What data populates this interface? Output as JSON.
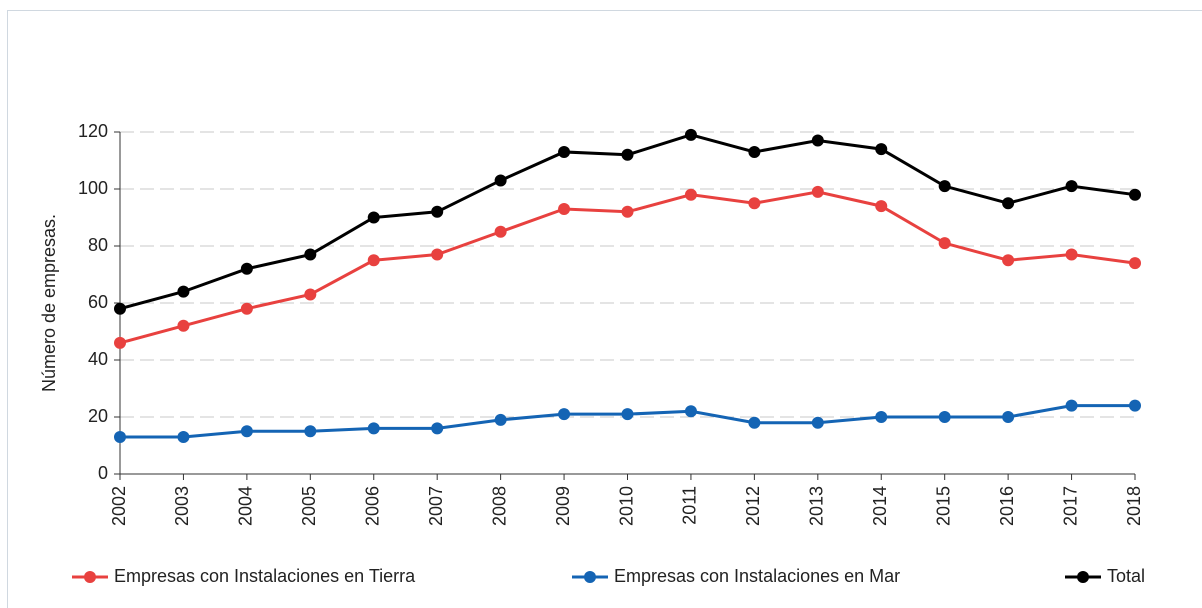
{
  "chart_data": {
    "type": "line",
    "y_label": "Número de empresas.",
    "categories": [
      "2002",
      "2003",
      "2004",
      "2005",
      "2006",
      "2007",
      "2008",
      "2009",
      "2010",
      "2011",
      "2012",
      "2013",
      "2014",
      "2015",
      "2016",
      "2017",
      "2018"
    ],
    "series": [
      {
        "name": "Empresas con Instalaciones en Tierra",
        "color": "#e8413f",
        "values": [
          46,
          52,
          58,
          63,
          75,
          77,
          85,
          93,
          92,
          98,
          95,
          99,
          94,
          81,
          75,
          77,
          74
        ]
      },
      {
        "name": "Empresas con Instalaciones en Mar",
        "color": "#1464b4",
        "values": [
          13,
          13,
          15,
          15,
          16,
          16,
          19,
          21,
          21,
          22,
          18,
          18,
          20,
          20,
          20,
          24,
          24
        ]
      },
      {
        "name": "Total",
        "color": "#000000",
        "values": [
          58,
          64,
          72,
          77,
          90,
          92,
          103,
          113,
          112,
          119,
          113,
          117,
          114,
          101,
          95,
          101,
          98
        ]
      }
    ],
    "ylim": [
      0,
      120
    ],
    "yticks": [
      0,
      20,
      40,
      60,
      80,
      100,
      120
    ],
    "grid": true,
    "legend": "bottom"
  }
}
